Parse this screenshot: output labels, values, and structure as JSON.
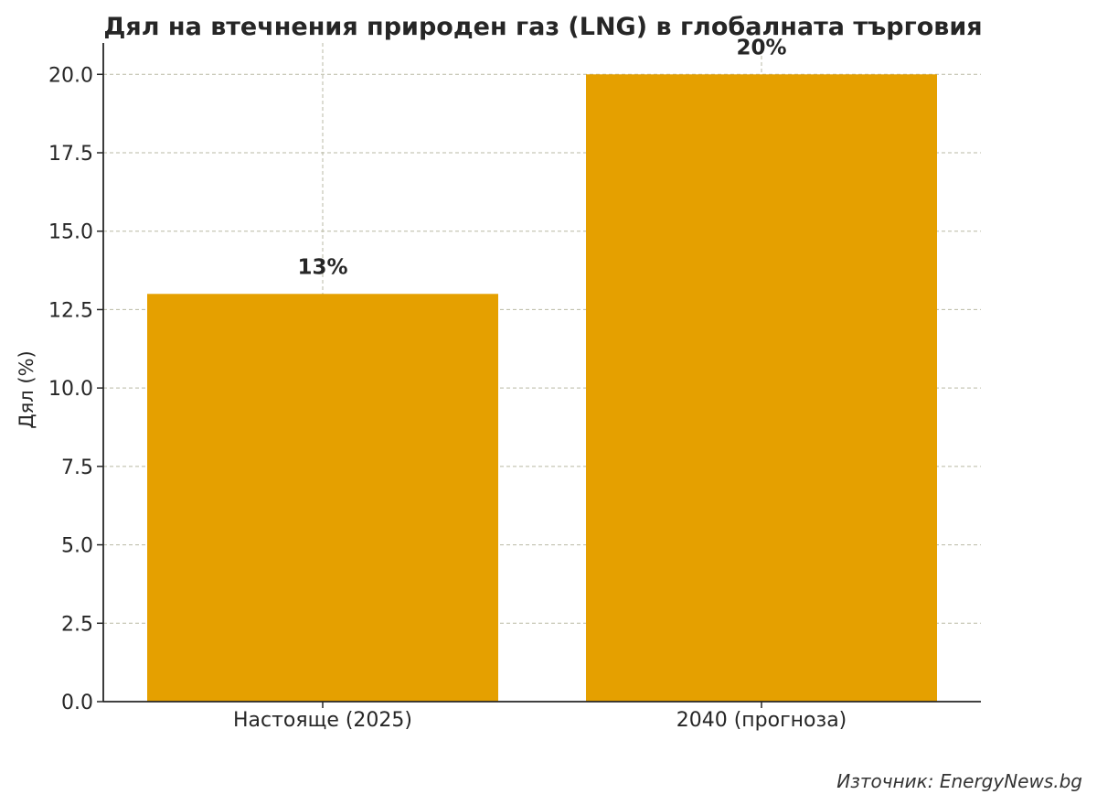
{
  "chart_data": {
    "type": "bar",
    "title": "Дял на втечнения природен газ (LNG) в глобалната търговия",
    "xlabel": "",
    "ylabel": "Дял (%)",
    "categories": [
      "Настояще (2025)",
      "2040 (прогноза)"
    ],
    "values": [
      13,
      20
    ],
    "data_labels": [
      "13%",
      "20%"
    ],
    "ylim": [
      0,
      21
    ],
    "yticks": [
      0,
      2.5,
      5,
      7.5,
      10,
      12.5,
      15,
      17.5,
      20
    ],
    "ytick_labels": [
      "0.0",
      "2.5",
      "5.0",
      "7.5",
      "10.0",
      "12.5",
      "15.0",
      "17.5",
      "20.0"
    ],
    "grid": true,
    "bar_color": "#e5a000",
    "source": "Източник: EnergyNews.bg"
  }
}
